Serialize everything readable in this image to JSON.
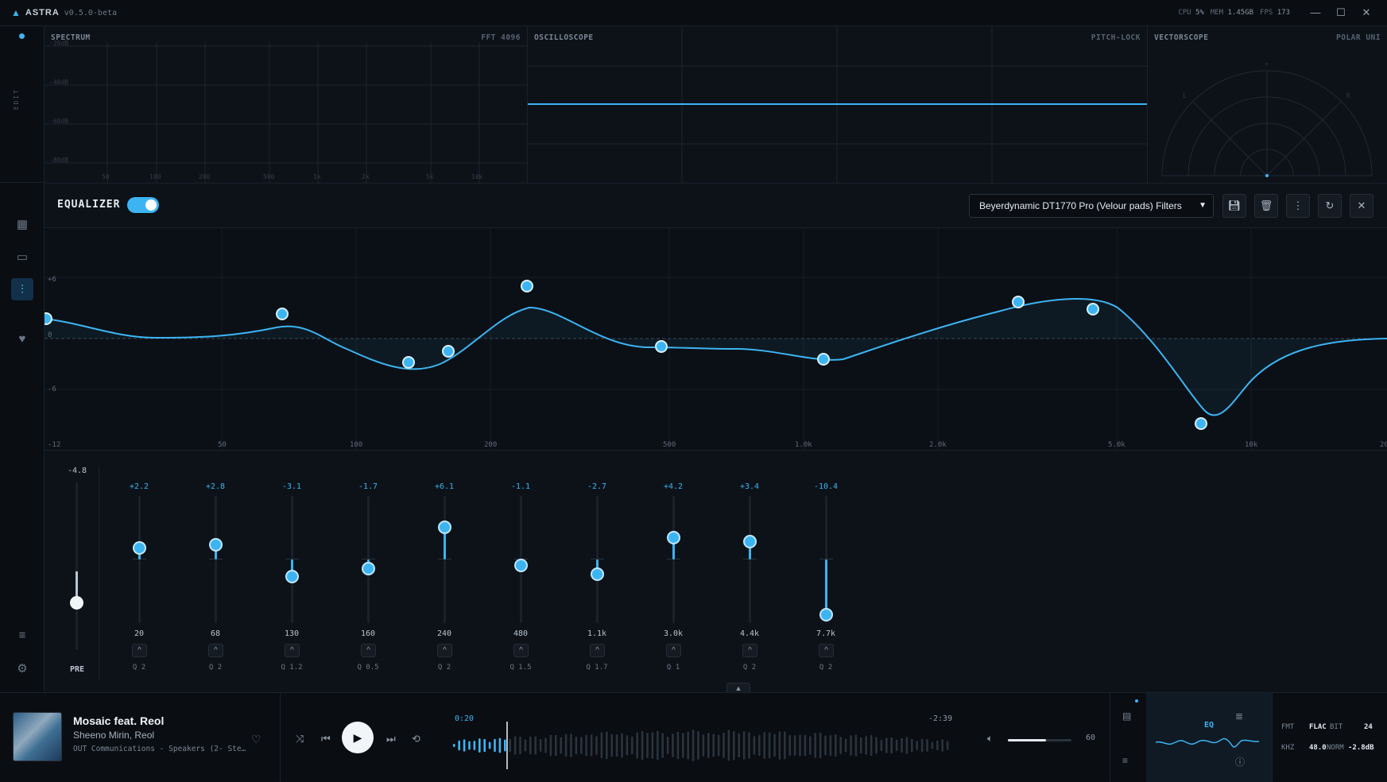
{
  "titlebar": {
    "app_name": "ASTRA",
    "version": "v0.5.0-beta",
    "cpu_label": "CPU",
    "cpu_value": "5%",
    "mem_label": "MEM",
    "mem_value": "1.45GB",
    "fps_label": "FPS",
    "fps_value": "173"
  },
  "leftbar": {
    "edit_label": "EDIT"
  },
  "panels": {
    "spectrum": {
      "title": "SPECTRUM",
      "right": "FFT 4096",
      "db_ticks": [
        "-20dB",
        "-40dB",
        "-60dB",
        "-80dB"
      ],
      "freq_ticks": [
        "50",
        "100",
        "200",
        "500",
        "1k",
        "2k",
        "5k",
        "10k"
      ]
    },
    "oscilloscope": {
      "title": "OSCILLOSCOPE",
      "right": "PITCH-LOCK"
    },
    "vectorscope": {
      "title": "VECTORSCOPE",
      "right": "POLAR UNI",
      "marks": [
        "+",
        "L",
        "R"
      ]
    }
  },
  "equalizer": {
    "title": "EQUALIZER",
    "enabled": true,
    "preset": "Beyerdynamic DT1770 Pro (Velour pads) Filters",
    "accent": "#3db4f2",
    "graph": {
      "y_labels": [
        "+6",
        "0",
        "-6",
        "-12"
      ],
      "x_labels": [
        "50",
        "100",
        "200",
        "500",
        "1.0k",
        "2.0k",
        "5.0k",
        "10k",
        "20"
      ]
    },
    "preamp": {
      "value": "-4.8",
      "label": "PRE",
      "level": -4.8
    },
    "bands": [
      {
        "gain": "+2.2",
        "freq": "20",
        "q": "Q 2",
        "value": 2.2
      },
      {
        "gain": "+2.8",
        "freq": "68",
        "q": "Q 2",
        "value": 2.8
      },
      {
        "gain": "-3.1",
        "freq": "130",
        "q": "Q 1.2",
        "value": -3.1
      },
      {
        "gain": "-1.7",
        "freq": "160",
        "q": "Q 0.5",
        "value": -1.7
      },
      {
        "gain": "+6.1",
        "freq": "240",
        "q": "Q 2",
        "value": 6.1
      },
      {
        "gain": "-1.1",
        "freq": "480",
        "q": "Q 1.5",
        "value": -1.1
      },
      {
        "gain": "-2.7",
        "freq": "1.1k",
        "q": "Q 1.7",
        "value": -2.7
      },
      {
        "gain": "+4.2",
        "freq": "3.0k",
        "q": "Q 1",
        "value": 4.2
      },
      {
        "gain": "+3.4",
        "freq": "4.4k",
        "q": "Q 2",
        "value": 3.4
      },
      {
        "gain": "-10.4",
        "freq": "7.7k",
        "q": "Q 2",
        "value": -10.4
      }
    ]
  },
  "player": {
    "title": "Mosaic feat. Reol",
    "artist": "Sheeno Mirin, Reol",
    "output": "OUT Communications - Speakers (2- Ste…",
    "elapsed": "0:20",
    "remaining": "-2:39",
    "progress": 0.11,
    "volume": "60",
    "volume_level": 0.6,
    "eq_label": "EQ",
    "format": {
      "fmt_label": "FMT",
      "fmt": "FLAC",
      "bit_label": "BIT",
      "bit": "24",
      "khz_label": "KHZ",
      "khz": "48.0",
      "norm_label": "NORM",
      "norm": "-2.8dB"
    }
  }
}
